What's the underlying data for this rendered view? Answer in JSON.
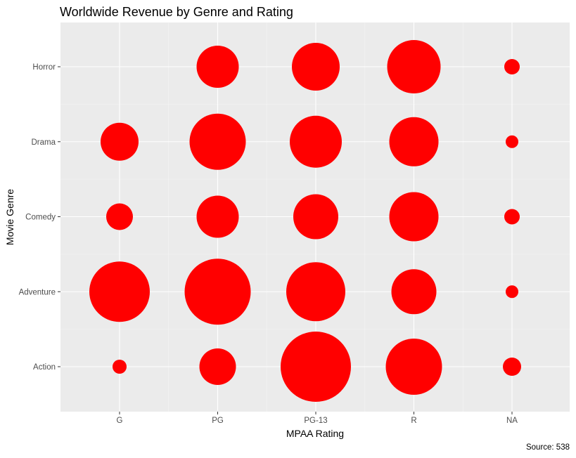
{
  "chart_data": {
    "type": "scatter",
    "title": "Worldwide Revenue by Genre and Rating",
    "xlabel": "MPAA Rating",
    "ylabel": "Movie Genre",
    "caption": "Source: 538",
    "x_categories": [
      "G",
      "PG",
      "PG-13",
      "R",
      "NA"
    ],
    "y_categories": [
      "Action",
      "Adventure",
      "Comedy",
      "Drama",
      "Horror"
    ],
    "grid": true,
    "legend": "none",
    "point_color": "#ff0000",
    "panel_background": "#ebebeb",
    "size_encoding": "relative revenue (bubble area)",
    "points": [
      {
        "x": "G",
        "y": "Horror",
        "size": null
      },
      {
        "x": "PG",
        "y": "Horror",
        "size": 30
      },
      {
        "x": "PG-13",
        "y": "Horror",
        "size": 34
      },
      {
        "x": "R",
        "y": "Horror",
        "size": 38
      },
      {
        "x": "NA",
        "y": "Horror",
        "size": 11
      },
      {
        "x": "G",
        "y": "Drama",
        "size": 27
      },
      {
        "x": "PG",
        "y": "Drama",
        "size": 40
      },
      {
        "x": "PG-13",
        "y": "Drama",
        "size": 37
      },
      {
        "x": "R",
        "y": "Drama",
        "size": 35
      },
      {
        "x": "NA",
        "y": "Drama",
        "size": 9
      },
      {
        "x": "G",
        "y": "Comedy",
        "size": 19
      },
      {
        "x": "PG",
        "y": "Comedy",
        "size": 30
      },
      {
        "x": "PG-13",
        "y": "Comedy",
        "size": 32
      },
      {
        "x": "R",
        "y": "Comedy",
        "size": 35
      },
      {
        "x": "NA",
        "y": "Comedy",
        "size": 11
      },
      {
        "x": "G",
        "y": "Adventure",
        "size": 43
      },
      {
        "x": "PG",
        "y": "Adventure",
        "size": 47
      },
      {
        "x": "PG-13",
        "y": "Adventure",
        "size": 42
      },
      {
        "x": "R",
        "y": "Adventure",
        "size": 32
      },
      {
        "x": "NA",
        "y": "Adventure",
        "size": 9
      },
      {
        "x": "G",
        "y": "Action",
        "size": 10
      },
      {
        "x": "PG",
        "y": "Action",
        "size": 26
      },
      {
        "x": "PG-13",
        "y": "Action",
        "size": 50
      },
      {
        "x": "R",
        "y": "Action",
        "size": 40
      },
      {
        "x": "NA",
        "y": "Action",
        "size": 13
      }
    ]
  }
}
